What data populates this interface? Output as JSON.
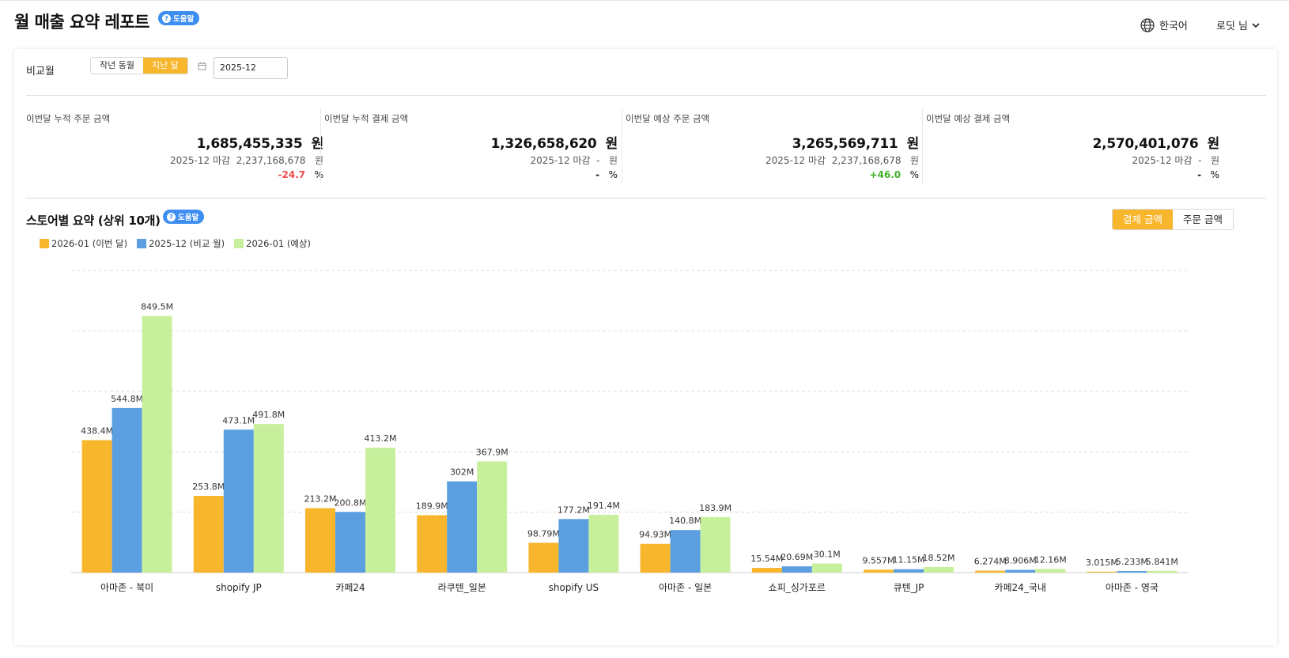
{
  "header": {
    "title": "월 매출 요약 레포트",
    "help_label": "도움말",
    "language": "한국어",
    "user": "로딧 님"
  },
  "filters": {
    "compare_label": "비교월",
    "options": [
      "작년 동월",
      "지난 달"
    ],
    "selected_option": "지난 달",
    "month_value": "2025-12"
  },
  "kpis": [
    {
      "label": "이번달 누적 주문 금액",
      "value": "1,685,455,335",
      "unit": "원",
      "sub_prefix": "2025-12 마감",
      "sub_value": "2,237,168,678",
      "sub_unit": "원",
      "pct": "-24.7",
      "pct_unit": "%",
      "pct_color": "neg"
    },
    {
      "label": "이번달 누적 결제 금액",
      "value": "1,326,658,620",
      "unit": "원",
      "sub_prefix": "2025-12 마감",
      "sub_value": "-",
      "sub_unit": "원",
      "pct": "-",
      "pct_unit": "%",
      "pct_color": ""
    },
    {
      "label": "이번달 예상 주문 금액",
      "value": "3,265,569,711",
      "unit": "원",
      "sub_prefix": "2025-12 마감",
      "sub_value": "2,237,168,678",
      "sub_unit": "원",
      "pct": "+46.0",
      "pct_unit": "%",
      "pct_color": "pos"
    },
    {
      "label": "이번달 예상 결제 금액",
      "value": "2,570,401,076",
      "unit": "원",
      "sub_prefix": "2025-12 마감",
      "sub_value": "-",
      "sub_unit": "원",
      "pct": "-",
      "pct_unit": "%",
      "pct_color": ""
    }
  ],
  "section": {
    "title": "스토어별 요약 (상위 10개)",
    "help_label": "도움말",
    "toggle_options": [
      "결제 금액",
      "주문 금액"
    ],
    "toggle_selected": "결제 금액"
  },
  "colors": {
    "accent": "#f8b62d",
    "series": [
      "#f8b62d",
      "#5b9fe0",
      "#c8f09c"
    ],
    "grid": "#dddddd",
    "help": "#3d8ef0"
  },
  "chart_data": {
    "type": "bar",
    "title": "",
    "xlabel": "",
    "ylabel": "",
    "ylim": [
      0,
      1000
    ],
    "unit": "M",
    "grid": true,
    "legend": "top-left",
    "categories": [
      "아마존 - 북미",
      "shopify JP",
      "카페24",
      "라쿠텐_일본",
      "shopify US",
      "아마존 - 일본",
      "쇼피_싱가포르",
      "큐텐_JP",
      "카페24_국내",
      "아마존 - 영국"
    ],
    "series": [
      {
        "name": "2026-01 (이번 달)",
        "values": [
          438.4,
          253.8,
          213.2,
          189.9,
          98.79,
          94.93,
          15.54,
          9.557,
          6.274,
          3.015
        ],
        "labels": [
          "438.4M",
          "253.8M",
          "213.2M",
          "189.9M",
          "98.79M",
          "94.93M",
          "15.54M",
          "9.557M",
          "6.274M",
          "3.015M"
        ]
      },
      {
        "name": "2025-12 (비교 월)",
        "values": [
          544.8,
          473.1,
          200.8,
          302,
          177.2,
          140.8,
          20.69,
          11.15,
          8.906,
          5.233
        ],
        "labels": [
          "544.8M",
          "473.1M",
          "200.8M",
          "302M",
          "177.2M",
          "140.8M",
          "20.69M",
          "11.15M",
          "8.906M",
          "5.233M"
        ]
      },
      {
        "name": "2026-01 (예상)",
        "values": [
          849.5,
          491.8,
          413.2,
          367.9,
          191.4,
          183.9,
          30.1,
          18.52,
          12.16,
          5.841
        ],
        "labels": [
          "849.5M",
          "491.8M",
          "413.2M",
          "367.9M",
          "191.4M",
          "183.9M",
          "30.1M",
          "18.52M",
          "12.16M",
          "5.841M"
        ]
      }
    ]
  }
}
